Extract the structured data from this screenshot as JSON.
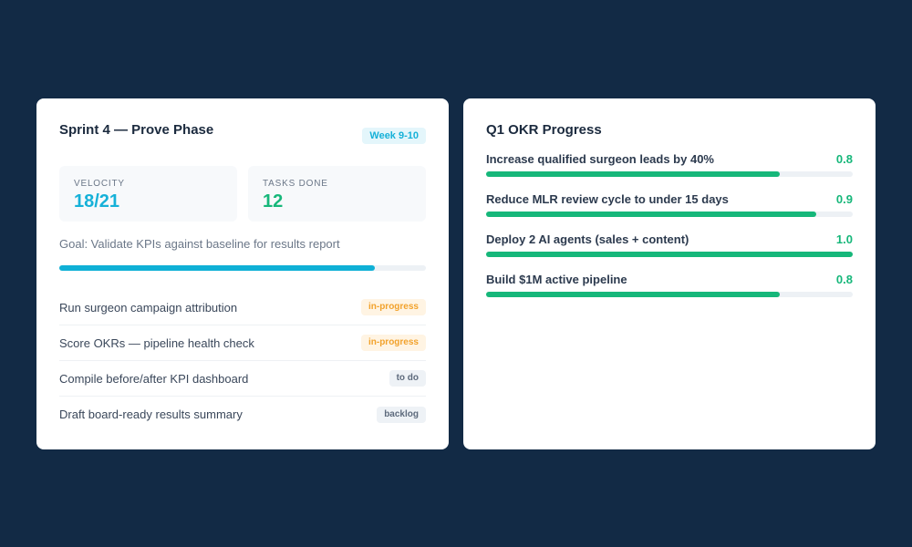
{
  "sprint": {
    "title": "Sprint 4 — Prove Phase",
    "week_badge": "Week 9-10",
    "velocity": {
      "label": "VELOCITY",
      "value": "18/21"
    },
    "tasks_done": {
      "label": "TASKS DONE",
      "value": "12"
    },
    "goal": "Goal: Validate KPIs against baseline for results report",
    "progress_percent": 86,
    "tasks": [
      {
        "name": "Run surgeon campaign attribution",
        "status": "in-progress"
      },
      {
        "name": "Score OKRs — pipeline health check",
        "status": "in-progress"
      },
      {
        "name": "Compile before/after KPI dashboard",
        "status": "to do"
      },
      {
        "name": "Draft board-ready results summary",
        "status": "backlog"
      }
    ]
  },
  "okr": {
    "title": "Q1 OKR Progress",
    "items": [
      {
        "label": "Increase qualified surgeon leads by 40%",
        "score": "0.8"
      },
      {
        "label": "Reduce MLR review cycle to under 15 days",
        "score": "0.9"
      },
      {
        "label": "Deploy 2 AI agents (sales + content)",
        "score": "1.0"
      },
      {
        "label": "Build $1M active pipeline",
        "score": "0.8"
      }
    ]
  },
  "colors": {
    "background": "#122a45",
    "velocity": "#16b1d8",
    "tasks_done": "#16b77a",
    "okr_bar": "#16b77a",
    "sprint_bar": "#0fb0d6"
  }
}
